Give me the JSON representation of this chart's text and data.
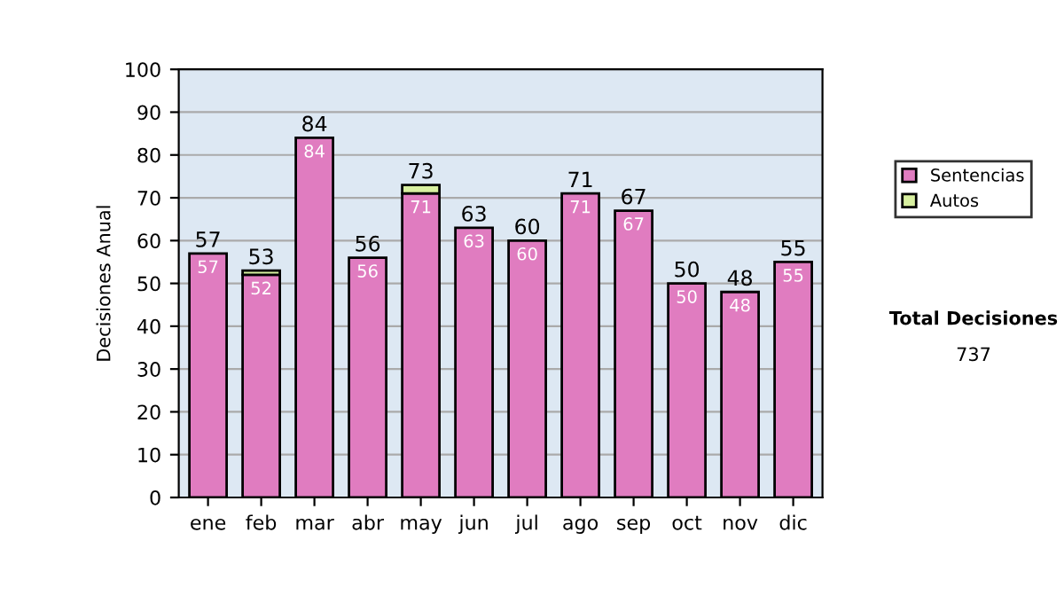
{
  "chart_data": {
    "type": "bar",
    "stacked": true,
    "ylabel": "Decisiones Anual",
    "categories": [
      "ene",
      "feb",
      "mar",
      "abr",
      "may",
      "jun",
      "jul",
      "ago",
      "sep",
      "oct",
      "nov",
      "dic"
    ],
    "series": [
      {
        "name": "Sentencias",
        "color": "#e07cc0",
        "values": [
          57,
          52,
          84,
          56,
          71,
          63,
          60,
          71,
          67,
          50,
          48,
          55
        ],
        "value_labels": [
          "57",
          "52",
          "84",
          "56",
          "71",
          "63",
          "60",
          "71",
          "67",
          "50",
          "48",
          "55"
        ]
      },
      {
        "name": "Autos",
        "color": "#d8f0a0",
        "values": [
          null,
          1,
          null,
          null,
          2,
          null,
          null,
          null,
          null,
          null,
          null,
          null
        ]
      }
    ],
    "totals": [
      "57",
      "53",
      "84",
      "56",
      "73",
      "63",
      "60",
      "71",
      "67",
      "50",
      "48",
      "55"
    ],
    "ylim": [
      0,
      100
    ],
    "yticks": [
      0,
      10,
      20,
      30,
      40,
      50,
      60,
      70,
      80,
      90,
      100
    ],
    "grid": "y",
    "legend": "right",
    "annotations": [
      "Total Decisiones",
      "737"
    ]
  }
}
